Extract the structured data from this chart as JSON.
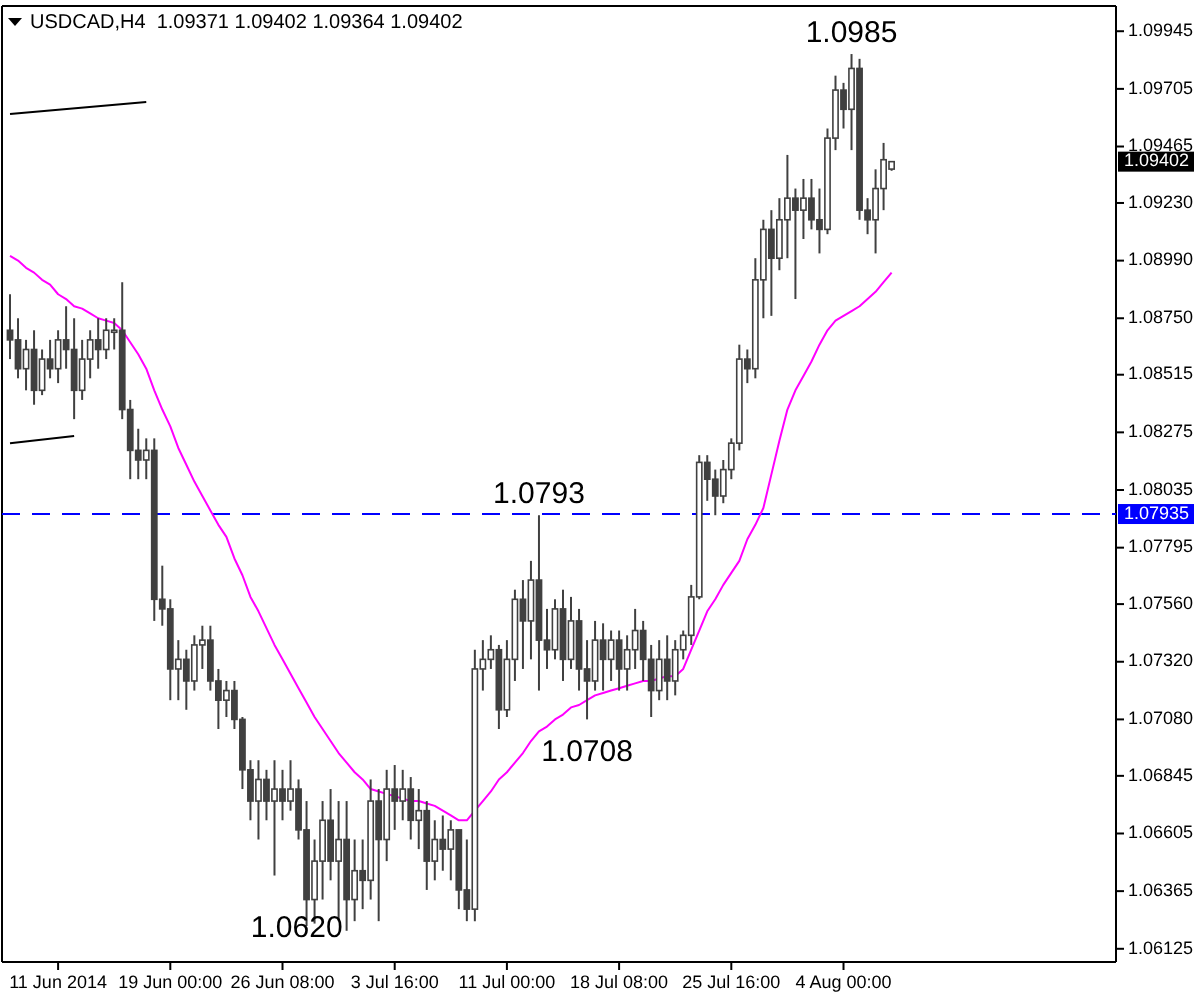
{
  "chart_data": {
    "type": "candlestick",
    "title": "USDCAD,H4  1.09371 1.09402 1.09364 1.09402",
    "color": "#404040",
    "categories": [
      null,
      null,
      null,
      null,
      null,
      null,
      "11 Jun 2014",
      null,
      null,
      null,
      null,
      null,
      null,
      null,
      null,
      null,
      null,
      null,
      null,
      null,
      "19 Jun 00:00",
      null,
      null,
      null,
      null,
      null,
      null,
      null,
      null,
      null,
      null,
      null,
      null,
      null,
      "26 Jun 08:00",
      null,
      null,
      null,
      null,
      null,
      null,
      null,
      null,
      null,
      null,
      null,
      null,
      null,
      "3 Jul 16:00",
      null,
      null,
      null,
      null,
      null,
      null,
      null,
      null,
      null,
      null,
      null,
      null,
      null,
      "11 Jul 00:00",
      null,
      null,
      null,
      null,
      null,
      null,
      null,
      null,
      null,
      null,
      null,
      null,
      null,
      "18 Jul 08:00",
      null,
      null,
      null,
      null,
      null,
      null,
      null,
      null,
      null,
      null,
      null,
      null,
      null,
      "25 Jul 16:00",
      null,
      null,
      null,
      null,
      null,
      null,
      null,
      null,
      null,
      null,
      null,
      null,
      null,
      "4 Aug 00:00",
      null,
      null,
      null,
      null,
      null,
      null
    ],
    "ohlc": [
      [
        1.087,
        1.0885,
        1.0858,
        1.0866
      ],
      [
        1.0866,
        1.0875,
        1.085,
        1.0854
      ],
      [
        1.0854,
        1.0866,
        1.0845,
        1.0862
      ],
      [
        1.0862,
        1.087,
        1.0839,
        1.0845
      ],
      [
        1.0845,
        1.0862,
        1.0843,
        1.0858
      ],
      [
        1.0858,
        1.0866,
        1.085,
        1.0854
      ],
      [
        1.0854,
        1.087,
        1.0848,
        1.0866
      ],
      [
        1.0866,
        1.088,
        1.0854,
        1.0862
      ],
      [
        1.0862,
        1.0875,
        1.0833,
        1.0845
      ],
      [
        1.0845,
        1.0866,
        1.0841,
        1.0858
      ],
      [
        1.0858,
        1.087,
        1.085,
        1.0866
      ],
      [
        1.0866,
        1.0875,
        1.0854,
        1.0862
      ],
      [
        1.0862,
        1.0875,
        1.0858,
        1.087
      ],
      [
        1.087,
        1.0875,
        1.0862,
        1.087
      ],
      [
        1.087,
        1.089,
        1.0833,
        1.0837
      ],
      [
        1.0837,
        1.0841,
        1.0808,
        1.082
      ],
      [
        1.082,
        1.0829,
        1.0808,
        1.0816
      ],
      [
        1.0816,
        1.0825,
        1.0808,
        1.082
      ],
      [
        1.082,
        1.0825,
        1.0749,
        1.0758
      ],
      [
        1.0758,
        1.0772,
        1.0747,
        1.0754
      ],
      [
        1.0754,
        1.0758,
        1.0716,
        1.0729
      ],
      [
        1.0729,
        1.0741,
        1.0716,
        1.0733
      ],
      [
        1.0733,
        1.0737,
        1.0712,
        1.0724
      ],
      [
        1.0724,
        1.0743,
        1.072,
        1.0739
      ],
      [
        1.0739,
        1.0747,
        1.0729,
        1.0741
      ],
      [
        1.0741,
        1.0747,
        1.072,
        1.0724
      ],
      [
        1.0724,
        1.0729,
        1.0704,
        1.0716
      ],
      [
        1.0716,
        1.0724,
        1.0709,
        1.072
      ],
      [
        1.072,
        1.0724,
        1.0704,
        1.0708
      ],
      [
        1.0708,
        1.0709,
        1.0679,
        1.0687
      ],
      [
        1.0687,
        1.0691,
        1.0666,
        1.0674
      ],
      [
        1.0674,
        1.0691,
        1.0658,
        1.0683
      ],
      [
        1.0683,
        1.0687,
        1.0666,
        1.0674
      ],
      [
        1.0674,
        1.0691,
        1.0643,
        1.0679
      ],
      [
        1.0679,
        1.0687,
        1.0666,
        1.0674
      ],
      [
        1.0674,
        1.0691,
        1.067,
        1.0679
      ],
      [
        1.0679,
        1.0683,
        1.0658,
        1.0662
      ],
      [
        1.0662,
        1.0674,
        1.0622,
        1.0633
      ],
      [
        1.0633,
        1.0658,
        1.0623,
        1.0649
      ],
      [
        1.0649,
        1.0674,
        1.0633,
        1.0666
      ],
      [
        1.0666,
        1.0679,
        1.0641,
        1.0649
      ],
      [
        1.0649,
        1.0674,
        1.0624,
        1.0658
      ],
      [
        1.0658,
        1.0674,
        1.062,
        1.0633
      ],
      [
        1.0633,
        1.0658,
        1.0624,
        1.0645
      ],
      [
        1.0645,
        1.0658,
        1.0629,
        1.0641
      ],
      [
        1.0641,
        1.0683,
        1.0633,
        1.0674
      ],
      [
        1.0674,
        1.0679,
        1.0624,
        1.0658
      ],
      [
        1.0658,
        1.0687,
        1.0649,
        1.0679
      ],
      [
        1.0679,
        1.0689,
        1.0662,
        1.0674
      ],
      [
        1.0674,
        1.0687,
        1.0666,
        1.0679
      ],
      [
        1.0679,
        1.0684,
        1.0658,
        1.0666
      ],
      [
        1.0666,
        1.0679,
        1.0654,
        1.067
      ],
      [
        1.067,
        1.0674,
        1.0637,
        1.0649
      ],
      [
        1.0649,
        1.0666,
        1.0641,
        1.0658
      ],
      [
        1.0658,
        1.0668,
        1.0645,
        1.0654
      ],
      [
        1.0654,
        1.0666,
        1.0641,
        1.0662
      ],
      [
        1.0662,
        1.0662,
        1.0629,
        1.0637
      ],
      [
        1.0637,
        1.0658,
        1.0624,
        1.0629
      ],
      [
        1.0629,
        1.0737,
        1.0624,
        1.0729
      ],
      [
        1.0729,
        1.0741,
        1.072,
        1.0733
      ],
      [
        1.0733,
        1.0743,
        1.0729,
        1.0737
      ],
      [
        1.0737,
        1.0739,
        1.0704,
        1.0712
      ],
      [
        1.0712,
        1.0741,
        1.0709,
        1.0733
      ],
      [
        1.0733,
        1.0762,
        1.0724,
        1.0758
      ],
      [
        1.0758,
        1.0766,
        1.0729,
        1.0749
      ],
      [
        1.0749,
        1.0774,
        1.0733,
        1.0766
      ],
      [
        1.0766,
        1.0793,
        1.072,
        1.0741
      ],
      [
        1.0741,
        1.0754,
        1.0729,
        1.0737
      ],
      [
        1.0737,
        1.0758,
        1.0733,
        1.0754
      ],
      [
        1.0754,
        1.0762,
        1.0724,
        1.0733
      ],
      [
        1.0733,
        1.0759,
        1.0729,
        1.0749
      ],
      [
        1.0749,
        1.0754,
        1.072,
        1.0729
      ],
      [
        1.0729,
        1.0741,
        1.0708,
        1.0724
      ],
      [
        1.0724,
        1.0749,
        1.072,
        1.0741
      ],
      [
        1.0741,
        1.0748,
        1.072,
        1.0733
      ],
      [
        1.0733,
        1.0745,
        1.0724,
        1.0741
      ],
      [
        1.0741,
        1.0745,
        1.072,
        1.0729
      ],
      [
        1.0729,
        1.0743,
        1.072,
        1.0737
      ],
      [
        1.0737,
        1.0754,
        1.0729,
        1.0745
      ],
      [
        1.0745,
        1.0749,
        1.0724,
        1.0733
      ],
      [
        1.0733,
        1.0739,
        1.0709,
        1.072
      ],
      [
        1.072,
        1.0741,
        1.0716,
        1.0733
      ],
      [
        1.0733,
        1.0743,
        1.0716,
        1.0724
      ],
      [
        1.0724,
        1.0741,
        1.0718,
        1.0737
      ],
      [
        1.0737,
        1.0745,
        1.0733,
        1.0743
      ],
      [
        1.0743,
        1.0764,
        1.0739,
        1.0759
      ],
      [
        1.0759,
        1.0818,
        1.0758,
        1.0815
      ],
      [
        1.0815,
        1.0818,
        1.0799,
        1.0808
      ],
      [
        1.0808,
        1.0812,
        1.0793,
        1.0801
      ],
      [
        1.0801,
        1.0816,
        1.0798,
        1.0812
      ],
      [
        1.0812,
        1.0825,
        1.0808,
        1.0823
      ],
      [
        1.0823,
        1.0864,
        1.082,
        1.0858
      ],
      [
        1.0858,
        1.0862,
        1.0848,
        1.0854
      ],
      [
        1.0854,
        1.09,
        1.085,
        1.0891
      ],
      [
        1.0891,
        1.0916,
        1.0875,
        1.0912
      ],
      [
        1.0912,
        1.092,
        1.0876,
        1.09
      ],
      [
        1.09,
        1.0925,
        1.0895,
        1.0916
      ],
      [
        1.0916,
        1.0943,
        1.09,
        1.0925
      ],
      [
        1.0925,
        1.0929,
        1.0883,
        1.092
      ],
      [
        1.092,
        1.0933,
        1.0908,
        1.0925
      ],
      [
        1.0925,
        1.0933,
        1.0912,
        1.0916
      ],
      [
        1.0916,
        1.0929,
        1.0902,
        1.0912
      ],
      [
        1.0912,
        1.0954,
        1.091,
        1.095
      ],
      [
        1.095,
        1.0976,
        1.0945,
        1.097
      ],
      [
        1.097,
        1.0973,
        1.0954,
        1.0962
      ],
      [
        1.0962,
        1.0985,
        1.0945,
        1.0979
      ],
      [
        1.0979,
        1.0983,
        1.0916,
        1.092
      ],
      [
        1.092,
        1.0925,
        1.091,
        1.0916
      ],
      [
        1.0916,
        1.0937,
        1.0902,
        1.0929
      ],
      [
        1.0929,
        1.0948,
        1.092,
        1.0941
      ],
      [
        1.09371,
        1.09402,
        1.09364,
        1.09402
      ]
    ],
    "series": [
      {
        "type": "line",
        "color": "#ff00ff",
        "values": [
          1.0901,
          1.0899,
          1.0896,
          1.0894,
          1.0891,
          1.0889,
          1.0885,
          1.0883,
          1.088,
          1.0879,
          1.0877,
          1.0875,
          1.0874,
          1.0873,
          1.087,
          1.0865,
          1.086,
          1.0854,
          1.0845,
          1.0837,
          1.083,
          1.0821,
          1.0814,
          1.0807,
          1.0801,
          1.0795,
          1.0789,
          1.0784,
          1.0775,
          1.0768,
          1.0759,
          1.0753,
          1.0746,
          1.0739,
          1.0733,
          1.0727,
          1.0721,
          1.0715,
          1.0709,
          1.0704,
          1.0699,
          1.0694,
          1.069,
          1.0686,
          1.0683,
          1.0679,
          1.0678,
          1.0677,
          1.0676,
          1.0675,
          1.0674,
          1.0674,
          1.0673,
          1.0672,
          1.067,
          1.0668,
          1.0666,
          1.0666,
          1.067,
          1.0674,
          1.0678,
          1.0683,
          1.0686,
          1.069,
          1.0694,
          1.0699,
          1.0703,
          1.0705,
          1.0708,
          1.071,
          1.0713,
          1.0714,
          1.0716,
          1.0718,
          1.0719,
          1.072,
          1.0721,
          1.0722,
          1.0723,
          1.0724,
          1.0724,
          1.0725,
          1.0726,
          1.0726,
          1.0729,
          1.0737,
          1.0745,
          1.0753,
          1.0758,
          1.0764,
          1.0769,
          1.0774,
          1.0783,
          1.0789,
          1.0796,
          1.081,
          1.0824,
          1.0837,
          1.0845,
          1.0851,
          1.0857,
          1.0864,
          1.087,
          1.0874,
          1.0876,
          1.0878,
          1.088,
          1.0883,
          1.0886,
          1.089,
          1.0894
        ]
      },
      {
        "type": "line",
        "color": "#000000",
        "values": [
          1.096,
          null,
          null,
          null,
          null,
          null,
          null,
          null,
          null,
          null,
          null,
          null,
          null,
          null,
          null,
          null,
          null,
          1.0965,
          null,
          null,
          null,
          null,
          null,
          null,
          null,
          null,
          null,
          null,
          null,
          null,
          null,
          null,
          null,
          null,
          null,
          null,
          null,
          null,
          null,
          null,
          null,
          null,
          null,
          null,
          null,
          null,
          null,
          null,
          null,
          null,
          null,
          null,
          null,
          null,
          null,
          null,
          null,
          null,
          null,
          null,
          null,
          null,
          null,
          null,
          null,
          null,
          null,
          null,
          null,
          null,
          null,
          null,
          null,
          null,
          null,
          null,
          null,
          null,
          null,
          null,
          null,
          null,
          null,
          null,
          null,
          null,
          null,
          null,
          null,
          null,
          null,
          null,
          null,
          null,
          null,
          null,
          null,
          null,
          null,
          null,
          null,
          null,
          null,
          null,
          null,
          null,
          null,
          null,
          null,
          null,
          null
        ]
      },
      {
        "type": "line",
        "color": "#000000",
        "values": [
          1.0823,
          null,
          null,
          null,
          null,
          null,
          null,
          null,
          1.0826,
          null,
          null,
          null,
          null,
          null,
          null,
          null,
          null,
          null,
          null,
          null,
          null,
          null,
          null,
          null,
          null,
          null,
          null,
          null,
          null,
          null,
          null,
          null,
          null,
          null,
          null,
          null,
          null,
          null,
          null,
          null,
          null,
          null,
          null,
          null,
          null,
          null,
          null,
          null,
          null,
          null,
          null,
          null,
          null,
          null,
          null,
          null,
          null,
          null,
          null,
          null,
          null,
          null,
          null,
          null,
          null,
          null,
          null,
          null,
          null,
          null,
          null,
          null,
          null,
          null,
          null,
          null,
          null,
          null,
          null,
          null,
          null,
          null,
          null,
          null,
          null,
          null,
          null,
          null,
          null,
          null,
          null,
          null,
          null,
          null,
          null,
          null,
          null,
          null,
          null,
          null,
          null,
          null,
          null,
          null,
          null,
          null,
          null,
          null,
          null,
          null,
          null
        ]
      }
    ],
    "ylim": [
      1.0607,
      1.1005
    ],
    "yticks": [
      1.09945,
      1.09705,
      1.09465,
      {
        "value": 1.0923,
        "label": "1.09230"
      },
      {
        "value": 1.0899,
        "label": "1.08990"
      },
      {
        "value": 1.0875,
        "label": "1.08750"
      },
      1.08515,
      1.08275,
      1.08035,
      1.07795,
      {
        "value": 1.0756,
        "label": "1.07560"
      },
      {
        "value": 1.0732,
        "label": "1.07320"
      },
      {
        "value": 1.0708,
        "label": "1.07080"
      },
      1.06845,
      1.06605,
      1.06365,
      1.06125
    ],
    "ref_lines": [
      {
        "axis": "y",
        "value": 1.07935,
        "label": "1.07935",
        "color": "#0000ff",
        "line_style": "dashed"
      }
    ],
    "annotations": [
      {
        "text": "1.0985",
        "y": 1.0985
      },
      {
        "text": "1.0793",
        "y": 1.0793
      },
      {
        "text": "1.0708",
        "y": 1.0708
      },
      "1.0620",
      "1.09402"
    ]
  }
}
